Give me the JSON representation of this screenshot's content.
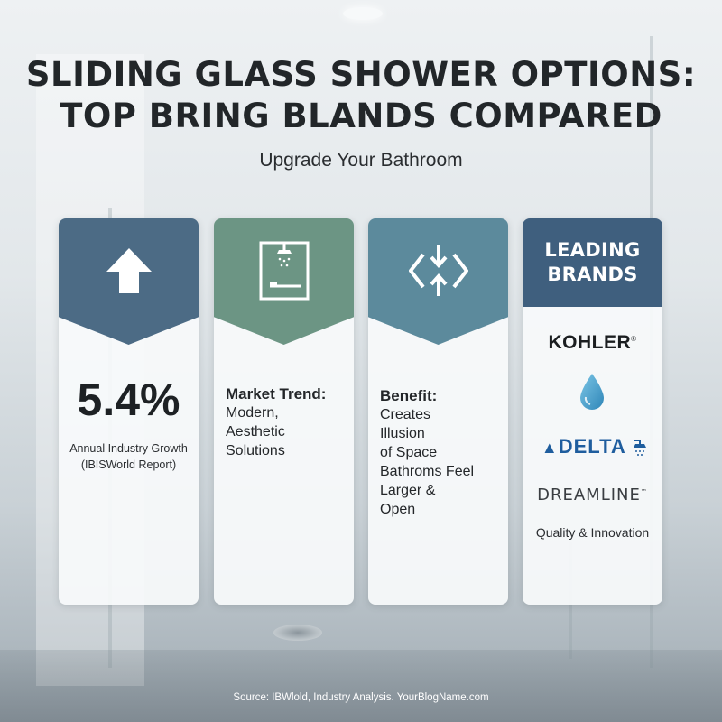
{
  "title_line1": "SLIDING GLASS SHOWER OPTIONS:",
  "title_line2": "TOP BRING BLANDS COMPARED",
  "subtitle": "Upgrade Your Bathroom",
  "cards": {
    "growth": {
      "icon": "up-arrow-icon",
      "color": "#4c6b85",
      "value": "5.4%",
      "caption_line1": "Annual Industry Growth",
      "caption_line2": "(IBISWorld Report)"
    },
    "trend": {
      "icon": "shower-enclosure-icon",
      "color": "#6c9584",
      "label": "Market Trend:",
      "lines": [
        "Modern,",
        "Aesthetic",
        "Solutions"
      ]
    },
    "benefit": {
      "icon": "expand-arrows-icon",
      "color": "#5c8a9c",
      "label": "Benefit:",
      "lines": [
        "Creates",
        "Illusion",
        "of Space",
        "Bathroms Feel",
        "Larger &",
        "Open"
      ]
    },
    "brands": {
      "color": "#3f5f7e",
      "header_line1": "LEADING",
      "header_line2": "BRANDS",
      "kohler": "KOHLER",
      "drop_icon": "water-drop-icon",
      "delta": "DELTA",
      "delta_icon": "shower-head-icon",
      "dreamline": "DREAMLINE",
      "tagline": "Quality & Innovation"
    }
  },
  "source": "Source: IBWlold, Industry Analysis. YourBlogName.com"
}
